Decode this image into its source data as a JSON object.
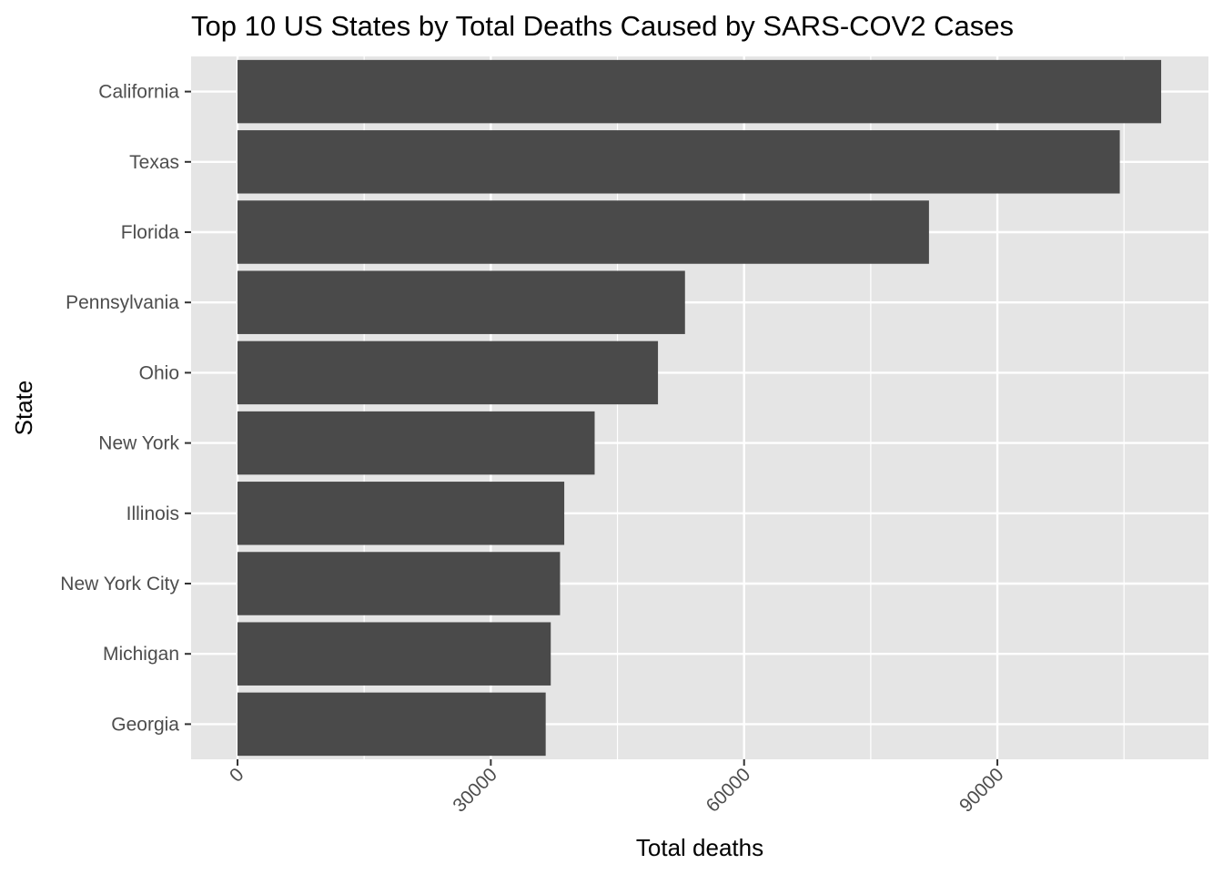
{
  "chart_data": {
    "type": "bar",
    "orientation": "horizontal",
    "title": "Top 10 US States by Total Deaths Caused by SARS-COV2 Cases",
    "xlabel": "Total deaths",
    "ylabel": "State",
    "categories": [
      "California",
      "Texas",
      "Florida",
      "Pennsylvania",
      "Ohio",
      "New York",
      "Illinois",
      "New York City",
      "Michigan",
      "Georgia"
    ],
    "values": [
      109400,
      104500,
      81900,
      53000,
      49800,
      42300,
      38700,
      38200,
      37100,
      36500
    ],
    "xticks": [
      0,
      30000,
      60000,
      90000
    ],
    "xlim": [
      -5500,
      115000
    ],
    "grid": true,
    "legend": "none",
    "colors": {
      "panel": "#e5e5e5",
      "grid": "#ffffff",
      "bar": "#4a4a4a",
      "tick": "#333333"
    }
  }
}
